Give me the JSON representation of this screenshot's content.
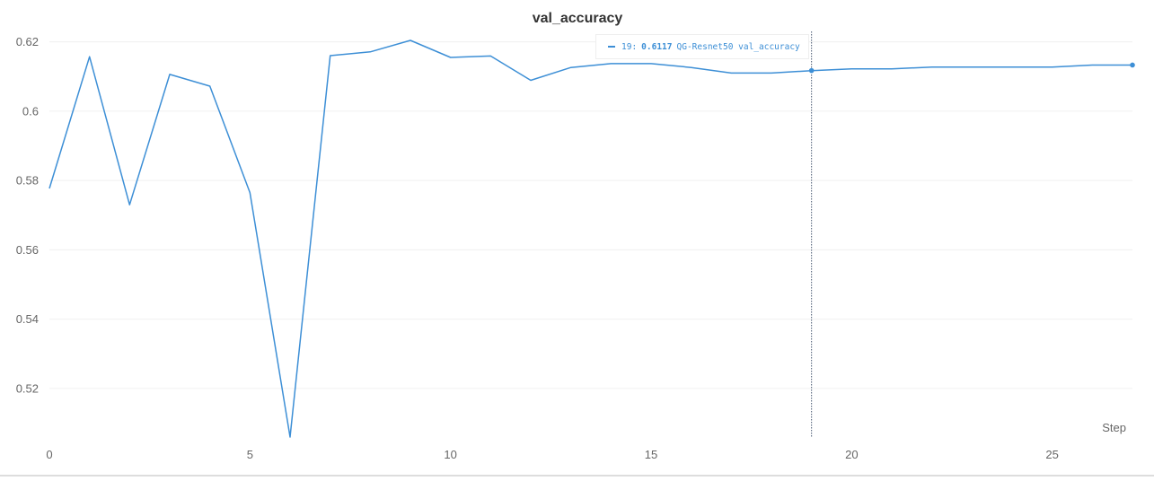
{
  "chart_data": {
    "type": "line",
    "title": "val_accuracy",
    "xlabel": "Step",
    "ylabel": "",
    "xlim": [
      0,
      27
    ],
    "ylim": [
      0.506,
      0.623
    ],
    "x_ticks": [
      0,
      5,
      10,
      15,
      20,
      25
    ],
    "y_ticks": [
      0.52,
      0.54,
      0.56,
      0.58,
      0.6,
      0.62
    ],
    "y_tick_labels": [
      "0.52",
      "0.54",
      "0.56",
      "0.58",
      "0.6",
      "0.62"
    ],
    "grid": true,
    "series": [
      {
        "name": "QG-Resnet50 val_accuracy",
        "color": "#3d8fd6",
        "x": [
          0,
          1,
          2,
          3,
          4,
          5,
          6,
          7,
          8,
          9,
          10,
          11,
          12,
          13,
          14,
          15,
          16,
          17,
          18,
          19,
          20,
          21,
          22,
          23,
          24,
          25,
          26,
          27
        ],
        "y": [
          0.5777,
          0.6157,
          0.573,
          0.6106,
          0.6072,
          0.5765,
          0.506,
          0.616,
          0.6171,
          0.6204,
          0.6155,
          0.6159,
          0.6089,
          0.6126,
          0.6137,
          0.6137,
          0.6126,
          0.611,
          0.611,
          0.6117,
          0.6122,
          0.6122,
          0.6127,
          0.6127,
          0.6127,
          0.6127,
          0.6133,
          0.6133
        ]
      }
    ],
    "hover": {
      "step": 19,
      "step_text": "19:",
      "value_text": "0.6117",
      "series_label": "QG-Resnet50 val_accuracy"
    }
  }
}
